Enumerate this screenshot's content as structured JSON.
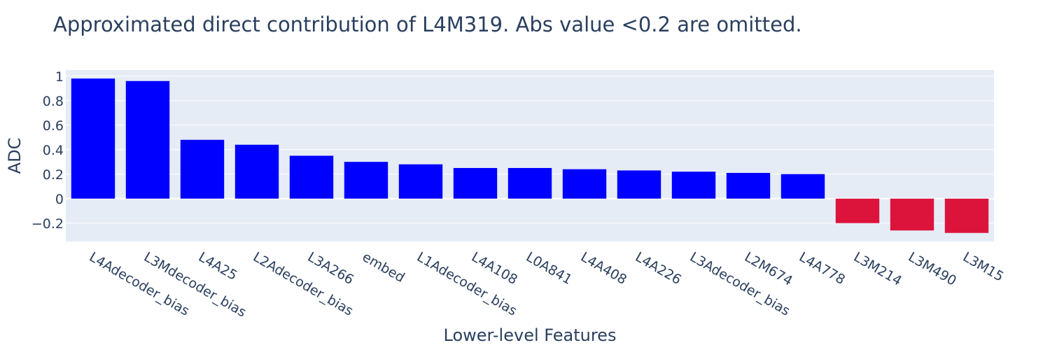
{
  "chart_data": {
    "type": "bar",
    "title": "Approximated direct contribution of L4M319. Abs value <0.2 are omitted.",
    "xlabel": "Lower-level Features",
    "ylabel": "ADC",
    "categories": [
      "L4Adecoder_bias",
      "L3Mdecoder_bias",
      "L4A25",
      "L2Adecoder_bias",
      "L3A266",
      "embed",
      "L1Adecoder_bias",
      "L4A108",
      "L0A841",
      "L4A408",
      "L4A226",
      "L3Adecoder_bias",
      "L2M674",
      "L4A778",
      "L3M214",
      "L3M490",
      "L3M15"
    ],
    "values": [
      0.98,
      0.96,
      0.48,
      0.44,
      0.35,
      0.3,
      0.28,
      0.25,
      0.25,
      0.24,
      0.23,
      0.22,
      0.21,
      0.2,
      -0.2,
      -0.26,
      -0.28
    ],
    "ylim": [
      -0.35,
      1.05
    ],
    "yticks": [
      1,
      0.8,
      0.6,
      0.4,
      0.2,
      0,
      -0.2
    ],
    "ytick_labels": [
      "1",
      "0.8",
      "0.6",
      "0.4",
      "0.2",
      "0",
      "−0.2"
    ],
    "grid": true,
    "colors": {
      "positive": "#0000ff",
      "negative": "#dc143c",
      "plot_bg": "#e5ecf6",
      "grid": "#ffffff",
      "text": "#2a3f5f"
    }
  }
}
